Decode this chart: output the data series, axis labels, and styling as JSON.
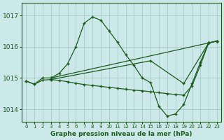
{
  "title": "Graphe pression niveau de la mer (hPa)",
  "bg_color": "#cce8e8",
  "grid_color": "#aacccc",
  "line_color": "#1a5c1a",
  "ylim": [
    1013.6,
    1017.4
  ],
  "yticks": [
    1014,
    1015,
    1016,
    1017
  ],
  "xlim": [
    -0.5,
    23.5
  ],
  "xticks": [
    0,
    1,
    2,
    3,
    4,
    5,
    6,
    7,
    8,
    9,
    10,
    11,
    12,
    13,
    14,
    15,
    16,
    17,
    18,
    19,
    20,
    21,
    22,
    23
  ],
  "series": [
    {
      "x": [
        0,
        1,
        2,
        3,
        4,
        5,
        6,
        7,
        8,
        9,
        10,
        11,
        12,
        13,
        14,
        15,
        16,
        17,
        18,
        19,
        20,
        21,
        22,
        23
      ],
      "y": [
        1014.9,
        1014.8,
        1015.0,
        1015.0,
        1015.15,
        1015.45,
        1016.0,
        1016.75,
        1016.95,
        1016.85,
        1016.5,
        1016.15,
        1015.75,
        1015.4,
        1015.0,
        1014.85,
        1014.1,
        1013.78,
        1013.85,
        1014.15,
        1014.82,
        1015.5,
        1016.12,
        1016.18
      ]
    },
    {
      "x": [
        3,
        22,
        23
      ],
      "y": [
        1015.0,
        1016.12,
        1016.18
      ]
    },
    {
      "x": [
        0,
        1,
        2,
        3,
        4,
        5,
        6,
        7,
        8,
        9,
        10,
        11,
        12,
        13,
        14,
        15,
        16,
        17,
        18,
        19,
        20,
        21,
        22,
        23
      ],
      "y": [
        1014.9,
        1014.8,
        1014.93,
        1014.95,
        1014.92,
        1014.88,
        1014.83,
        1014.79,
        1014.76,
        1014.73,
        1014.7,
        1014.67,
        1014.64,
        1014.61,
        1014.59,
        1014.56,
        1014.53,
        1014.5,
        1014.47,
        1014.45,
        1014.75,
        1015.4,
        1016.12,
        1016.18
      ]
    },
    {
      "x": [
        3,
        15,
        19,
        22,
        23
      ],
      "y": [
        1014.95,
        1015.55,
        1014.82,
        1016.12,
        1016.18
      ]
    }
  ]
}
